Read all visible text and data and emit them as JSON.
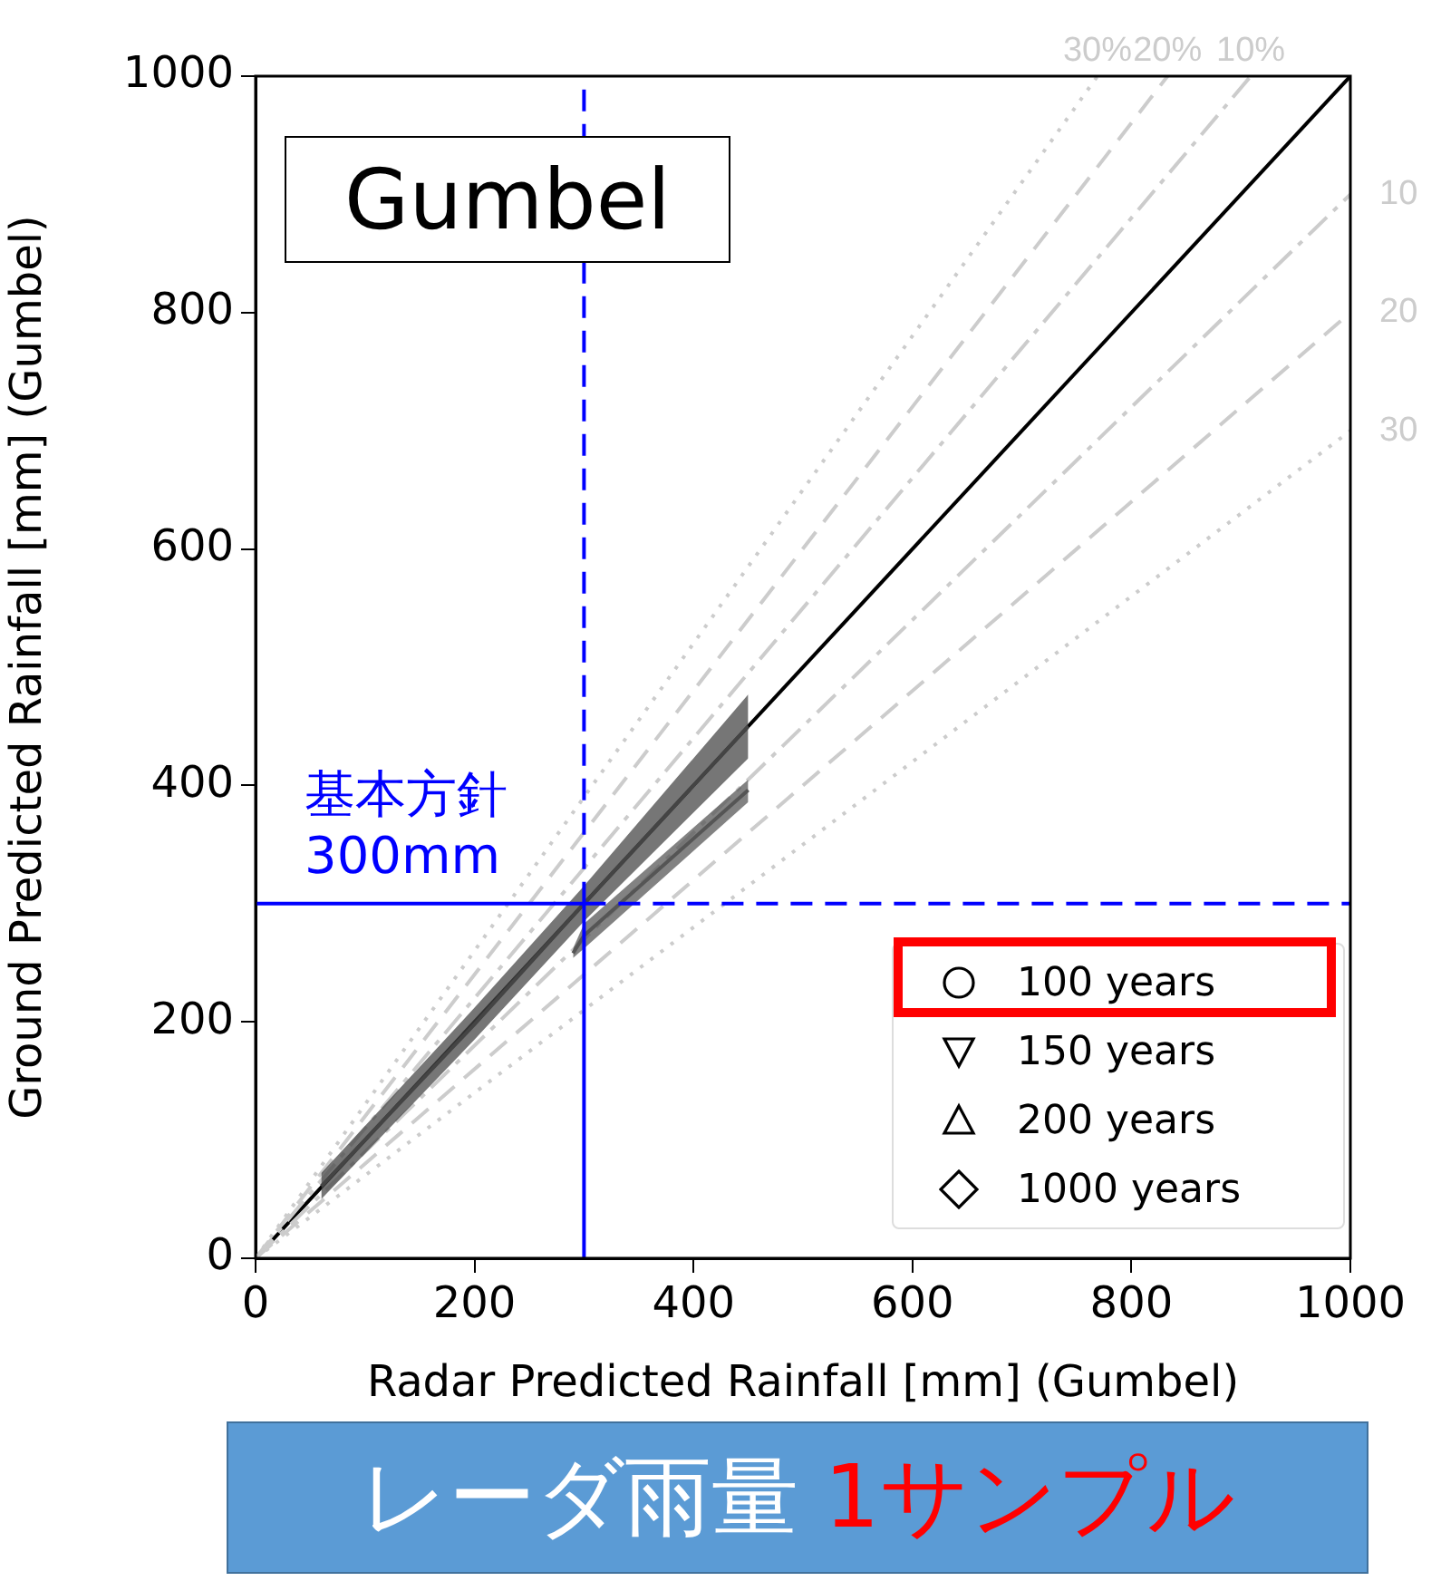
{
  "chart_data": {
    "type": "line",
    "title": "Gumbel",
    "xlabel": "Radar Predicted Rainfall [mm] (Gumbel)",
    "ylabel": "Ground Predicted Rainfall [mm] (Gumbel)",
    "xlim": [
      0,
      1000
    ],
    "xticks": [
      0,
      200,
      400,
      600,
      800,
      1000
    ],
    "ylim": [
      0,
      1000
    ],
    "yticks": [
      0,
      200,
      400,
      600,
      800,
      1000
    ],
    "grid": false,
    "legend": "bottom right",
    "series": [
      {
        "color": "#000000",
        "x": [
          0,
          1000
        ],
        "values": [
          0,
          1000
        ],
        "line_style": "solid"
      },
      {
        "color": "#cccccc",
        "x": [
          0,
          909
        ],
        "values": [
          0,
          1000
        ],
        "line_style": "dashdot"
      },
      {
        "color": "#cccccc",
        "x": [
          0,
          833
        ],
        "values": [
          0,
          1000
        ],
        "line_style": "dashed"
      },
      {
        "color": "#cccccc",
        "x": [
          0,
          769
        ],
        "values": [
          0,
          1000
        ],
        "line_style": "dotted"
      },
      {
        "color": "#cccccc",
        "x": [
          0,
          1000
        ],
        "values": [
          0,
          900
        ],
        "line_style": "dashdot"
      },
      {
        "color": "#cccccc",
        "x": [
          0,
          1000
        ],
        "values": [
          0,
          800
        ],
        "line_style": "dashed"
      },
      {
        "color": "#cccccc",
        "x": [
          0,
          1000
        ],
        "values": [
          0,
          700
        ],
        "line_style": "dotted"
      },
      {
        "color": "#444444",
        "x": [
          60,
          200,
          300,
          450
        ],
        "values": [
          61,
          198,
          300,
          450
        ],
        "lower": [
          50,
          185,
          285,
          423
        ],
        "upper": [
          72,
          212,
          315,
          477
        ]
      },
      {
        "color": "#555555",
        "x": [
          290,
          300,
          450
        ],
        "values": [
          258,
          273,
          396
        ],
        "lower": [
          254,
          262,
          386
        ],
        "upper": [
          262,
          283,
          405
        ]
      },
      {
        "color": "#0000ff",
        "x": [
          300,
          300
        ],
        "values": [
          0,
          300
        ],
        "line_style": "solid"
      },
      {
        "color": "#0000ff",
        "x": [
          300,
          300
        ],
        "values": [
          300,
          1000
        ],
        "line_style": "dashed"
      },
      {
        "color": "#0000ff",
        "x": [
          0,
          300
        ],
        "values": [
          300,
          300
        ],
        "line_style": "solid"
      },
      {
        "color": "#0000ff",
        "x": [
          300,
          1000
        ],
        "values": [
          300,
          300
        ],
        "line_style": "dashed"
      },
      {
        "type": "scatter",
        "name": "100 years",
        "marker": "circle",
        "color": "#000000"
      },
      {
        "type": "scatter",
        "name": "150 years",
        "marker": "triangle_down",
        "color": "#000000"
      },
      {
        "type": "scatter",
        "name": "200 years",
        "marker": "triangle",
        "color": "#000000"
      },
      {
        "type": "scatter",
        "name": "1000 years",
        "marker": "diamond",
        "color": "#000000"
      }
    ],
    "annotations": [
      {
        "text": "30%",
        "x": 769,
        "y": 1000
      },
      {
        "text": "20%",
        "x": 833,
        "y": 1000
      },
      {
        "text": "10%",
        "x": 909,
        "y": 1000
      },
      {
        "text": "10",
        "x": 1000,
        "y": 900
      },
      {
        "text": "20",
        "x": 1000,
        "y": 800
      },
      {
        "text": "30",
        "x": 1000,
        "y": 700
      },
      "基本方針\n300mm",
      "レーダ雨量",
      "1サンプル"
    ]
  }
}
